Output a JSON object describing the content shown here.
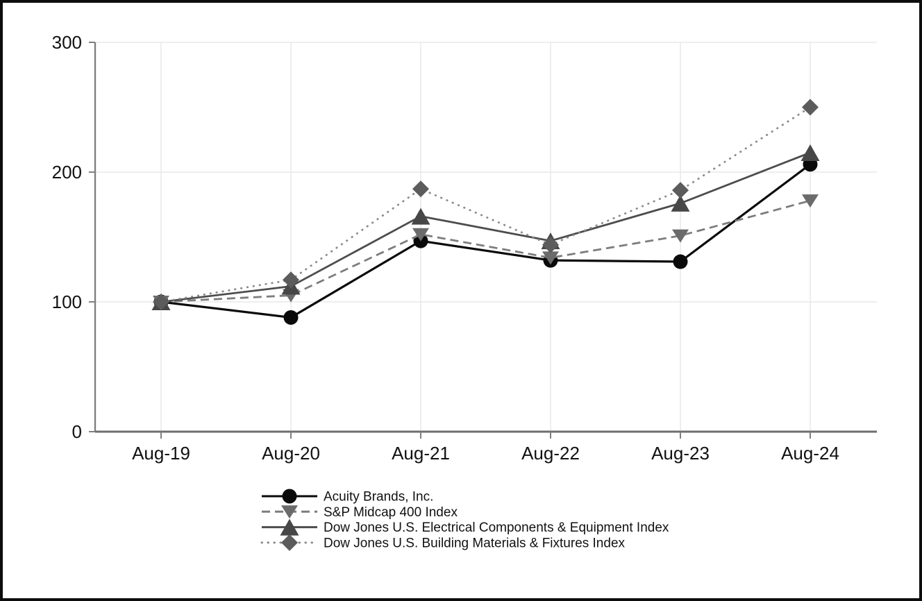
{
  "chart_data": {
    "type": "line",
    "title": "",
    "xlabel": "",
    "ylabel": "",
    "x_categories": [
      "Aug-19",
      "Aug-20",
      "Aug-21",
      "Aug-22",
      "Aug-23",
      "Aug-24"
    ],
    "y_ticks": [
      0,
      100,
      200,
      300
    ],
    "ylim": [
      0,
      300
    ],
    "grid": true,
    "legend_position": "bottom-left",
    "series": [
      {
        "name": "Acuity Brands, Inc.",
        "values": [
          100,
          88,
          147,
          132,
          131,
          206
        ],
        "line_style": "solid",
        "line_color": "#0a0a0a",
        "marker": "circle-icon",
        "marker_color": "#0a0a0a"
      },
      {
        "name": "S&P Midcap 400 Index",
        "values": [
          100,
          105,
          152,
          134,
          151,
          178
        ],
        "line_style": "dashed",
        "line_color": "#7d7d7d",
        "marker": "triangle-down-icon",
        "marker_color": "#6b6b6b"
      },
      {
        "name": "Dow Jones U.S. Electrical Components & Equipment Index",
        "values": [
          100,
          112,
          166,
          147,
          176,
          215
        ],
        "line_style": "solid",
        "line_color": "#4d4d4d",
        "marker": "triangle-up-icon",
        "marker_color": "#474747"
      },
      {
        "name": "Dow Jones U.S. Building Materials & Fixtures Index",
        "values": [
          100,
          117,
          187,
          144,
          186,
          250
        ],
        "line_style": "dotted",
        "line_color": "#8a8a8a",
        "marker": "diamond-icon",
        "marker_color": "#5c5c5c"
      }
    ],
    "colors": {
      "grid": "#e9e9e9",
      "axis": "#7f7f7f",
      "axis_baseline": "#6e6e6e",
      "text": "#111111",
      "background": "#ffffff",
      "frame": "#0d0d0d"
    }
  }
}
